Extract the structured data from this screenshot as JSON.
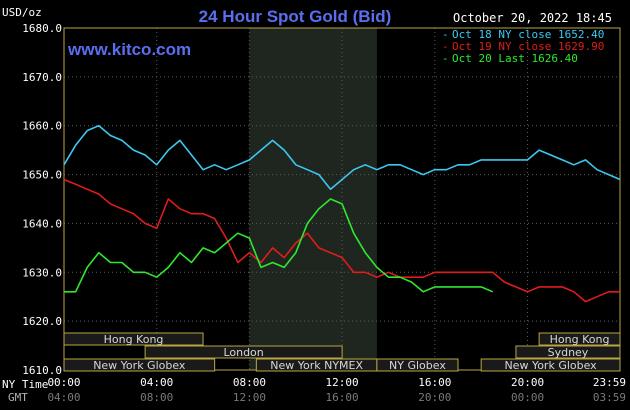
{
  "chart_data": {
    "type": "line",
    "title": "24 Hour Spot Gold (Bid)",
    "watermark": "www.kitco.com",
    "timestamp": "October 20, 2022 18:45",
    "unit_label": "USD/oz",
    "ylim": [
      1610,
      1680
    ],
    "y_ticks": [
      "1680.0",
      "1670.0",
      "1660.0",
      "1650.0",
      "1640.0",
      "1630.0",
      "1620.0",
      "1610.0"
    ],
    "x_time_label_ny": "NY Time",
    "x_time_label_gmt": "GMT",
    "x_ticks_ny": [
      "00:00",
      "04:00",
      "08:00",
      "12:00",
      "16:00",
      "20:00",
      "23:59"
    ],
    "x_ticks_gmt": [
      "04:00",
      "08:00",
      "12:00",
      "16:00",
      "20:00",
      "00:00",
      "03:59"
    ],
    "colors": {
      "oct18": "#3cc8f0",
      "oct19": "#e01c1c",
      "oct20": "#2ee82e",
      "title": "#5a6ef0",
      "watermark": "#5a6ef0",
      "border": "#b8a642"
    },
    "legend": [
      {
        "label": "Oct 18 NY close 1652.40",
        "color": "#3cc8f0"
      },
      {
        "label": "Oct 19 NY close 1629.90",
        "color": "#e01c1c"
      },
      {
        "label": "Oct 20 Last 1626.40",
        "color": "#2ee82e"
      }
    ],
    "shaded_hours": [
      8,
      13.5
    ],
    "sessions": [
      {
        "label": "Hong Kong",
        "start": 0,
        "end": 6,
        "row": 0
      },
      {
        "label": "Hong Kong",
        "start": 20.5,
        "end": 23.99,
        "row": 0
      },
      {
        "label": "London",
        "start": 3.5,
        "end": 12,
        "row": 1
      },
      {
        "label": "Sydney",
        "start": 19.5,
        "end": 23.99,
        "row": 1
      },
      {
        "label": "New York Globex",
        "start": 0,
        "end": 6.5,
        "row": 2
      },
      {
        "label": "New York NYMEX",
        "start": 8.3,
        "end": 13.5,
        "row": 2
      },
      {
        "label": "NY Globex",
        "start": 13.5,
        "end": 17,
        "row": 2
      },
      {
        "label": "New York Globex",
        "start": 18,
        "end": 23.99,
        "row": 2
      }
    ],
    "series": [
      {
        "name": "Oct 18",
        "color": "#3cc8f0",
        "x": [
          0,
          0.5,
          1,
          1.5,
          2,
          2.5,
          3,
          3.5,
          4,
          4.5,
          5,
          5.5,
          6,
          6.5,
          7,
          7.5,
          8,
          8.5,
          9,
          9.5,
          10,
          10.5,
          11,
          11.5,
          12,
          12.5,
          13,
          13.5,
          14,
          14.5,
          15,
          15.5,
          16,
          16.5,
          17,
          17.5,
          18,
          18.5,
          19,
          19.5,
          20,
          20.5,
          21,
          21.5,
          22,
          22.5,
          23,
          23.5,
          23.99
        ],
        "y": [
          1652,
          1656,
          1659,
          1660,
          1658,
          1657,
          1655,
          1654,
          1652,
          1655,
          1657,
          1654,
          1651,
          1652,
          1651,
          1652,
          1653,
          1655,
          1657,
          1655,
          1652,
          1651,
          1650,
          1647,
          1649,
          1651,
          1652,
          1651,
          1652,
          1652,
          1651,
          1650,
          1651,
          1651,
          1652,
          1652,
          1653,
          1653,
          1653,
          1653,
          1653,
          1655,
          1654,
          1653,
          1652,
          1653,
          1651,
          1650,
          1649
        ]
      },
      {
        "name": "Oct 19",
        "color": "#e01c1c",
        "x": [
          0,
          0.5,
          1,
          1.5,
          2,
          2.5,
          3,
          3.5,
          4,
          4.5,
          5,
          5.5,
          6,
          6.5,
          7,
          7.5,
          8,
          8.5,
          9,
          9.5,
          10,
          10.5,
          11,
          11.5,
          12,
          12.5,
          13,
          13.5,
          14,
          14.5,
          15,
          15.5,
          16,
          16.5,
          17,
          17.5,
          18,
          18.5,
          19,
          19.5,
          20,
          20.5,
          21,
          21.5,
          22,
          22.5,
          23,
          23.5,
          23.99
        ],
        "y": [
          1649,
          1648,
          1647,
          1646,
          1644,
          1643,
          1642,
          1640,
          1639,
          1645,
          1643,
          1642,
          1642,
          1641,
          1637,
          1632,
          1634,
          1632,
          1635,
          1633,
          1636,
          1638,
          1635,
          1634,
          1633,
          1630,
          1630,
          1629,
          1630,
          1629,
          1629,
          1629,
          1630,
          1630,
          1630,
          1630,
          1630,
          1630,
          1628,
          1627,
          1626,
          1627,
          1627,
          1627,
          1626,
          1624,
          1625,
          1626,
          1626
        ]
      },
      {
        "name": "Oct 20",
        "color": "#2ee82e",
        "x": [
          0,
          0.5,
          1,
          1.5,
          2,
          2.5,
          3,
          3.5,
          4,
          4.5,
          5,
          5.5,
          6,
          6.5,
          7,
          7.5,
          8,
          8.5,
          9,
          9.5,
          10,
          10.5,
          11,
          11.5,
          12,
          12.5,
          13,
          13.5,
          14,
          14.5,
          15,
          15.5,
          16,
          16.5,
          17,
          17.5,
          18,
          18.5
        ],
        "y": [
          1626,
          1626,
          1631,
          1634,
          1632,
          1632,
          1630,
          1630,
          1629,
          1631,
          1634,
          1632,
          1635,
          1634,
          1636,
          1638,
          1637,
          1631,
          1632,
          1631,
          1634,
          1640,
          1643,
          1645,
          1644,
          1638,
          1634,
          1631,
          1629,
          1629,
          1628,
          1626,
          1627,
          1627,
          1627,
          1627,
          1627,
          1626
        ]
      }
    ]
  }
}
